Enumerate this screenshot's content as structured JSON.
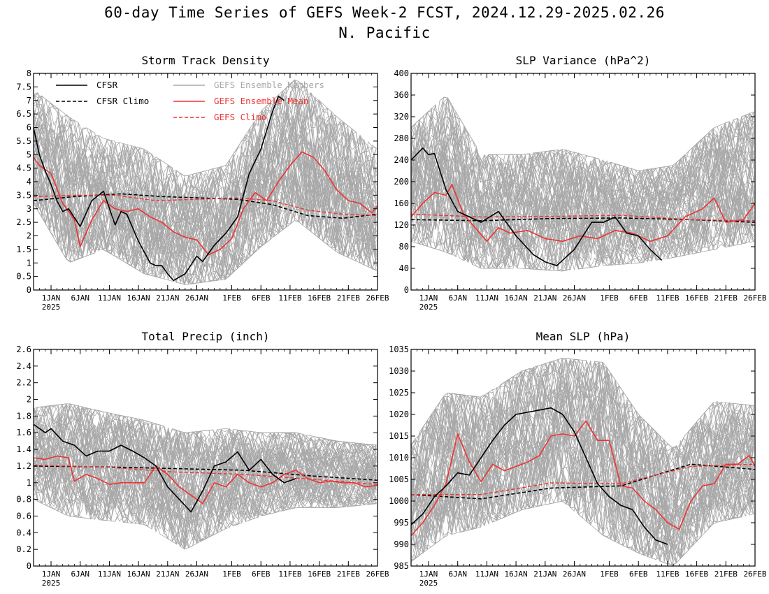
{
  "figure": {
    "title_line1": "60-day Time Series of GEFS Week-2 FCST, 2024.12.29-2025.02.26",
    "title_line2": "N. Pacific"
  },
  "colors": {
    "cfsr": "#000000",
    "gefs_mean": "#ee3333",
    "members": "#a8a8a8"
  },
  "x_axis": {
    "start_date": "2024-12-29",
    "end_date": "2025-02-26",
    "tick_dates": [
      "2025-01-01",
      "2025-01-06",
      "2025-01-11",
      "2025-01-16",
      "2025-01-21",
      "2025-01-26",
      "2025-02-01",
      "2025-02-06",
      "2025-02-11",
      "2025-02-16",
      "2025-02-21",
      "2025-02-26"
    ],
    "tick_labels": [
      "1JAN",
      "6JAN",
      "11JAN",
      "16JAN",
      "21JAN",
      "26JAN",
      "1FEB",
      "6FEB",
      "11FEB",
      "16FEB",
      "21FEB",
      "26FEB"
    ],
    "year_label": "2025"
  },
  "legend": {
    "cfsr": "CFSR",
    "cfsr_climo": "CFSR Climo",
    "members": "GEFS Ensemble Members",
    "gefs_mean": "GEFS Ensemble Mean",
    "gefs_climo": "GEFS Climo"
  },
  "chart_data": [
    {
      "type": "line",
      "title": "Storm Track Density",
      "ylim": [
        0,
        8
      ],
      "yticks": [
        0,
        0.5,
        1,
        1.5,
        2,
        2.5,
        3,
        3.5,
        4,
        4.5,
        5,
        5.5,
        6,
        6.5,
        7,
        7.5,
        8
      ],
      "ytick_labels": [
        "0",
        "0.5",
        "1",
        "1.5",
        "2",
        "2.5",
        "3",
        "3.5",
        "4",
        "4.5",
        "5",
        "5.5",
        "6",
        "6.5",
        "7",
        "7.5",
        "8"
      ],
      "members_band": {
        "x": [
          "2024-12-29",
          "2025-01-04",
          "2025-01-10",
          "2025-01-17",
          "2025-01-24",
          "2025-01-31",
          "2025-02-06",
          "2025-02-12",
          "2025-02-19",
          "2025-02-26"
        ],
        "low": [
          3.2,
          1.0,
          1.5,
          0.6,
          0.2,
          0.4,
          1.6,
          2.6,
          1.4,
          0.7
        ],
        "high": [
          7.4,
          6.4,
          5.6,
          5.2,
          4.2,
          4.6,
          6.6,
          7.8,
          6.4,
          5.2
        ]
      },
      "series": [
        {
          "name": "CFSR",
          "x": [
            "2024-12-29",
            "2024-12-30",
            "2024-12-31",
            "2025-01-01",
            "2025-01-02",
            "2025-01-03",
            "2025-01-04",
            "2025-01-06",
            "2025-01-08",
            "2025-01-10",
            "2025-01-12",
            "2025-01-13",
            "2025-01-14",
            "2025-01-16",
            "2025-01-18",
            "2025-01-19",
            "2025-01-20",
            "2025-01-21",
            "2025-01-22",
            "2025-01-24",
            "2025-01-26",
            "2025-01-27",
            "2025-01-29",
            "2025-01-31",
            "2025-02-02",
            "2025-02-04",
            "2025-02-06",
            "2025-02-08",
            "2025-02-09",
            "2025-02-10"
          ],
          "y": [
            6.0,
            5.0,
            4.4,
            3.9,
            3.3,
            2.9,
            3.0,
            2.35,
            3.3,
            3.65,
            2.4,
            2.9,
            2.8,
            1.8,
            1.0,
            0.9,
            0.9,
            0.6,
            0.35,
            0.6,
            1.25,
            1.05,
            1.65,
            2.1,
            2.7,
            4.3,
            5.2,
            6.6,
            7.15,
            7.0
          ]
        },
        {
          "name": "CFSR Climo",
          "x": [
            "2024-12-29",
            "2025-01-05",
            "2025-01-13",
            "2025-01-20",
            "2025-01-27",
            "2025-02-02",
            "2025-02-08",
            "2025-02-14",
            "2025-02-20",
            "2025-02-26"
          ],
          "y": [
            3.3,
            3.45,
            3.55,
            3.45,
            3.4,
            3.35,
            3.15,
            2.75,
            2.65,
            2.8
          ]
        },
        {
          "name": "GEFS Ensemble Mean",
          "x": [
            "2024-12-29",
            "2024-12-30",
            "2025-01-01",
            "2025-01-03",
            "2025-01-05",
            "2025-01-06",
            "2025-01-08",
            "2025-01-10",
            "2025-01-12",
            "2025-01-14",
            "2025-01-16",
            "2025-01-18",
            "2025-01-20",
            "2025-01-22",
            "2025-01-24",
            "2025-01-26",
            "2025-01-28",
            "2025-01-30",
            "2025-02-01",
            "2025-02-03",
            "2025-02-05",
            "2025-02-07",
            "2025-02-09",
            "2025-02-11",
            "2025-02-13",
            "2025-02-15",
            "2025-02-17",
            "2025-02-19",
            "2025-02-21",
            "2025-02-23",
            "2025-02-25",
            "2025-02-26"
          ],
          "y": [
            4.9,
            4.6,
            4.3,
            3.2,
            2.6,
            1.6,
            2.6,
            3.3,
            3.0,
            2.9,
            3.0,
            2.7,
            2.5,
            2.15,
            1.95,
            1.85,
            1.3,
            1.5,
            1.9,
            3.0,
            3.6,
            3.3,
            4.0,
            4.6,
            5.1,
            4.9,
            4.4,
            3.7,
            3.3,
            3.2,
            2.85,
            3.1
          ]
        },
        {
          "name": "GEFS Climo",
          "x": [
            "2024-12-29",
            "2025-01-05",
            "2025-01-12",
            "2025-01-19",
            "2025-01-26",
            "2025-02-02",
            "2025-02-08",
            "2025-02-14",
            "2025-02-20",
            "2025-02-26"
          ],
          "y": [
            3.45,
            3.5,
            3.5,
            3.3,
            3.35,
            3.4,
            3.3,
            2.95,
            2.8,
            2.75
          ]
        }
      ]
    },
    {
      "type": "line",
      "title": "SLP Variance (hPa^2)",
      "ylim": [
        0,
        400
      ],
      "yticks": [
        0,
        40,
        80,
        120,
        160,
        200,
        240,
        280,
        320,
        360,
        400
      ],
      "ytick_labels": [
        "0",
        "40",
        "80",
        "120",
        "160",
        "200",
        "240",
        "280",
        "320",
        "360",
        "400"
      ],
      "members_band": {
        "x": [
          "2024-12-29",
          "2025-01-04",
          "2025-01-10",
          "2025-01-17",
          "2025-01-24",
          "2025-01-31",
          "2025-02-06",
          "2025-02-12",
          "2025-02-19",
          "2025-02-26"
        ],
        "low": [
          90,
          70,
          40,
          40,
          35,
          45,
          50,
          60,
          75,
          90
        ],
        "high": [
          300,
          360,
          250,
          250,
          260,
          240,
          220,
          230,
          300,
          330
        ]
      },
      "series": [
        {
          "name": "CFSR",
          "x": [
            "2024-12-29",
            "2024-12-31",
            "2025-01-01",
            "2025-01-02",
            "2025-01-04",
            "2025-01-06",
            "2025-01-08",
            "2025-01-10",
            "2025-01-13",
            "2025-01-16",
            "2025-01-19",
            "2025-01-21",
            "2025-01-23",
            "2025-01-26",
            "2025-01-29",
            "2025-01-31",
            "2025-02-02",
            "2025-02-04",
            "2025-02-06",
            "2025-02-08",
            "2025-02-10"
          ],
          "y": [
            240,
            262,
            250,
            252,
            185,
            145,
            135,
            125,
            145,
            100,
            65,
            52,
            45,
            75,
            125,
            125,
            135,
            105,
            100,
            75,
            55
          ]
        },
        {
          "name": "CFSR Climo",
          "x": [
            "2024-12-29",
            "2025-01-10",
            "2025-01-22",
            "2025-02-03",
            "2025-02-15",
            "2025-02-26"
          ],
          "y": [
            130,
            128,
            132,
            133,
            130,
            125
          ]
        },
        {
          "name": "GEFS Ensemble Mean",
          "x": [
            "2024-12-29",
            "2024-12-31",
            "2025-01-02",
            "2025-01-04",
            "2025-01-05",
            "2025-01-07",
            "2025-01-09",
            "2025-01-11",
            "2025-01-13",
            "2025-01-15",
            "2025-01-18",
            "2025-01-21",
            "2025-01-24",
            "2025-01-27",
            "2025-01-30",
            "2025-02-02",
            "2025-02-05",
            "2025-02-08",
            "2025-02-11",
            "2025-02-14",
            "2025-02-17",
            "2025-02-19",
            "2025-02-21",
            "2025-02-24",
            "2025-02-26"
          ],
          "y": [
            135,
            160,
            180,
            175,
            195,
            140,
            115,
            90,
            115,
            105,
            110,
            95,
            90,
            100,
            95,
            110,
            105,
            90,
            100,
            135,
            150,
            170,
            125,
            130,
            160
          ]
        },
        {
          "name": "GEFS Climo",
          "x": [
            "2024-12-29",
            "2025-01-10",
            "2025-01-22",
            "2025-02-03",
            "2025-02-15",
            "2025-02-26"
          ],
          "y": [
            140,
            135,
            136,
            138,
            130,
            128
          ]
        }
      ]
    },
    {
      "type": "line",
      "title": "Total Precip (inch)",
      "ylim": [
        0,
        2.6
      ],
      "yticks": [
        0,
        0.2,
        0.4,
        0.6,
        0.8,
        1,
        1.2,
        1.4,
        1.6,
        1.8,
        2,
        2.2,
        2.4,
        2.6
      ],
      "ytick_labels": [
        "0",
        "0.2",
        "0.4",
        "0.6",
        "0.8",
        "1",
        "1.2",
        "1.4",
        "1.6",
        "1.8",
        "2",
        "2.2",
        "2.4",
        "2.6"
      ],
      "members_band": {
        "x": [
          "2024-12-29",
          "2025-01-04",
          "2025-01-10",
          "2025-01-17",
          "2025-01-24",
          "2025-01-31",
          "2025-02-06",
          "2025-02-12",
          "2025-02-19",
          "2025-02-26"
        ],
        "low": [
          0.8,
          0.6,
          0.55,
          0.5,
          0.2,
          0.45,
          0.6,
          0.7,
          0.7,
          0.75
        ],
        "high": [
          1.9,
          1.95,
          1.85,
          1.75,
          1.6,
          1.65,
          1.6,
          1.6,
          1.5,
          1.45
        ]
      },
      "series": [
        {
          "name": "CFSR",
          "x": [
            "2024-12-29",
            "2024-12-31",
            "2025-01-01",
            "2025-01-03",
            "2025-01-05",
            "2025-01-07",
            "2025-01-09",
            "2025-01-11",
            "2025-01-13",
            "2025-01-15",
            "2025-01-17",
            "2025-01-19",
            "2025-01-21",
            "2025-01-23",
            "2025-01-25",
            "2025-01-27",
            "2025-01-29",
            "2025-01-31",
            "2025-02-02",
            "2025-02-04",
            "2025-02-06",
            "2025-02-08",
            "2025-02-10",
            "2025-02-12"
          ],
          "y": [
            1.7,
            1.6,
            1.65,
            1.5,
            1.45,
            1.32,
            1.38,
            1.38,
            1.45,
            1.38,
            1.3,
            1.2,
            0.95,
            0.8,
            0.65,
            0.9,
            1.2,
            1.25,
            1.37,
            1.15,
            1.28,
            1.1,
            1.0,
            1.05
          ]
        },
        {
          "name": "CFSR Climo",
          "x": [
            "2024-12-29",
            "2025-01-10",
            "2025-01-22",
            "2025-02-03",
            "2025-02-15",
            "2025-02-26"
          ],
          "y": [
            1.2,
            1.19,
            1.17,
            1.15,
            1.08,
            1.03
          ]
        },
        {
          "name": "GEFS Ensemble Mean",
          "x": [
            "2024-12-29",
            "2024-12-31",
            "2025-01-02",
            "2025-01-04",
            "2025-01-05",
            "2025-01-07",
            "2025-01-09",
            "2025-01-11",
            "2025-01-13",
            "2025-01-15",
            "2025-01-17",
            "2025-01-19",
            "2025-01-21",
            "2025-01-23",
            "2025-01-25",
            "2025-01-27",
            "2025-01-29",
            "2025-01-31",
            "2025-02-02",
            "2025-02-04",
            "2025-02-06",
            "2025-02-08",
            "2025-02-10",
            "2025-02-12",
            "2025-02-14",
            "2025-02-16",
            "2025-02-18",
            "2025-02-20",
            "2025-02-22",
            "2025-02-24",
            "2025-02-26"
          ],
          "y": [
            1.3,
            1.28,
            1.32,
            1.3,
            1.02,
            1.1,
            1.05,
            0.98,
            1.0,
            1.0,
            1.0,
            1.2,
            1.1,
            0.95,
            0.85,
            0.75,
            1.0,
            0.95,
            1.1,
            1.0,
            0.95,
            1.0,
            1.1,
            1.15,
            1.05,
            1.0,
            1.02,
            1.0,
            1.0,
            0.95,
            0.97
          ]
        },
        {
          "name": "GEFS Climo",
          "x": [
            "2024-12-29",
            "2025-01-10",
            "2025-01-22",
            "2025-02-03",
            "2025-02-15",
            "2025-02-26"
          ],
          "y": [
            1.21,
            1.19,
            1.13,
            1.1,
            1.04,
            0.98
          ]
        }
      ]
    },
    {
      "type": "line",
      "title": "Mean SLP (hPa)",
      "ylim": [
        985,
        1035
      ],
      "yticks": [
        985,
        990,
        995,
        1000,
        1005,
        1010,
        1015,
        1020,
        1025,
        1030,
        1035
      ],
      "ytick_labels": [
        "985",
        "990",
        "995",
        "1000",
        "1005",
        "1010",
        "1015",
        "1020",
        "1025",
        "1030",
        "1035"
      ],
      "members_band": {
        "x": [
          "2024-12-29",
          "2025-01-04",
          "2025-01-10",
          "2025-01-17",
          "2025-01-24",
          "2025-01-31",
          "2025-02-06",
          "2025-02-12",
          "2025-02-19",
          "2025-02-26"
        ],
        "low": [
          986,
          992,
          994,
          998,
          1000,
          992,
          988,
          985,
          995,
          997
        ],
        "high": [
          1013,
          1025,
          1024,
          1030,
          1033,
          1032,
          1020,
          1012,
          1023,
          1022
        ]
      },
      "series": [
        {
          "name": "CFSR",
          "x": [
            "2024-12-29",
            "2024-12-31",
            "2025-01-02",
            "2025-01-04",
            "2025-01-06",
            "2025-01-08",
            "2025-01-10",
            "2025-01-12",
            "2025-01-14",
            "2025-01-16",
            "2025-01-18",
            "2025-01-20",
            "2025-01-22",
            "2025-01-24",
            "2025-01-26",
            "2025-01-28",
            "2025-01-30",
            "2025-02-01",
            "2025-02-03",
            "2025-02-05",
            "2025-02-07",
            "2025-02-09",
            "2025-02-11"
          ],
          "y": [
            994.5,
            997,
            1001,
            1003.5,
            1006.5,
            1006,
            1010,
            1014,
            1017.5,
            1020,
            1020.5,
            1021,
            1021.5,
            1020,
            1016,
            1010,
            1004,
            1001,
            999,
            998,
            994,
            991,
            990
          ]
        },
        {
          "name": "CFSR Climo",
          "x": [
            "2024-12-29",
            "2025-01-10",
            "2025-01-22",
            "2025-02-03",
            "2025-02-15",
            "2025-02-26"
          ],
          "y": [
            1001.5,
            1000.5,
            1003,
            1003.5,
            1008.5,
            1007.3
          ]
        },
        {
          "name": "GEFS Ensemble Mean",
          "x": [
            "2024-12-29",
            "2024-12-31",
            "2025-01-02",
            "2025-01-04",
            "2025-01-06",
            "2025-01-08",
            "2025-01-10",
            "2025-01-12",
            "2025-01-14",
            "2025-01-16",
            "2025-01-18",
            "2025-01-20",
            "2025-01-22",
            "2025-01-24",
            "2025-01-26",
            "2025-01-28",
            "2025-01-30",
            "2025-02-01",
            "2025-02-03",
            "2025-02-05",
            "2025-02-07",
            "2025-02-09",
            "2025-02-11",
            "2025-02-13",
            "2025-02-15",
            "2025-02-17",
            "2025-02-19",
            "2025-02-21",
            "2025-02-23",
            "2025-02-25",
            "2025-02-26"
          ],
          "y": [
            992,
            995,
            999,
            1004,
            1015.5,
            1009,
            1004.5,
            1008.5,
            1007,
            1008,
            1009,
            1010.5,
            1015,
            1015.5,
            1015,
            1018.5,
            1014,
            1014,
            1003.5,
            1003,
            1000,
            998,
            995,
            993.5,
            1000,
            1003.5,
            1004,
            1008.5,
            1008.5,
            1010.5,
            1008
          ]
        },
        {
          "name": "GEFS Climo",
          "x": [
            "2024-12-29",
            "2025-01-10",
            "2025-01-22",
            "2025-02-03",
            "2025-02-15",
            "2025-02-26"
          ],
          "y": [
            1001.5,
            1001.5,
            1004.2,
            1004,
            1008,
            1008.5
          ]
        }
      ]
    }
  ]
}
